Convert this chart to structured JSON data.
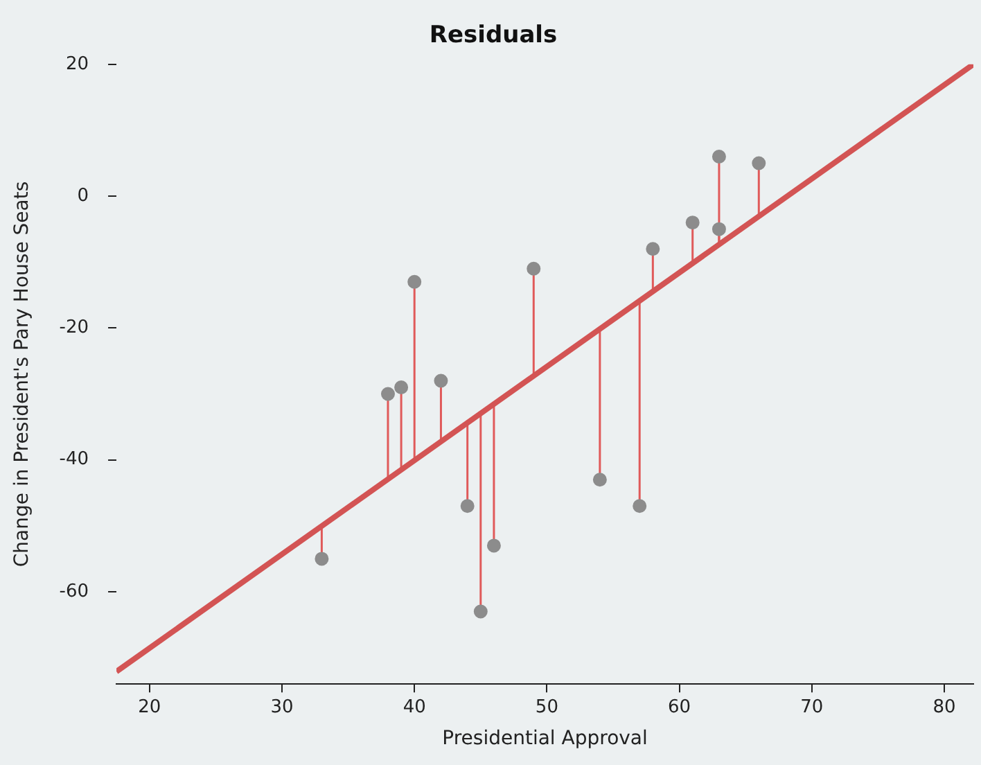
{
  "chart_data": {
    "type": "scatter",
    "title": "Residuals",
    "xlabel": "Presidential Approval",
    "ylabel": "Change in President's Pary House Seats",
    "xlim": [
      17.5,
      82.2
    ],
    "ylim": [
      -74,
      20
    ],
    "xticks": [
      20,
      30,
      40,
      50,
      60,
      70,
      80
    ],
    "yticks": [
      20,
      0,
      -20,
      -40,
      -60
    ],
    "grid": false,
    "legend": false,
    "series": [
      {
        "color": "#8c8c8c",
        "marker": "circle",
        "x": [
          33,
          38,
          39,
          40,
          42,
          44,
          45,
          46,
          49,
          54,
          57,
          58,
          61,
          63,
          63,
          66
        ],
        "values": [
          -55,
          -30,
          -29,
          -13,
          -28,
          -47,
          -63,
          -53,
          -11,
          -43,
          -47,
          -8,
          -4,
          6,
          -5,
          5
        ],
        "errors": [
          [
            -55,
            -50
          ],
          [
            -43,
            -30
          ],
          [
            -41.5,
            -29
          ],
          [
            -40,
            -13
          ],
          [
            -37,
            -28
          ],
          [
            -47,
            -34
          ],
          [
            -63,
            -33
          ],
          [
            -53,
            -31.5
          ],
          [
            -27,
            -11
          ],
          [
            -43,
            -20
          ],
          [
            -47,
            -16
          ],
          [
            -14.4,
            -8
          ],
          [
            -10,
            -4
          ],
          [
            -7.3,
            6
          ],
          [
            -7.3,
            -5
          ],
          [
            -3,
            5
          ]
        ]
      },
      {
        "type": "line",
        "color": "#d35454",
        "marker": "none",
        "x": [
          17.5,
          82.2
        ],
        "values": [
          -72.1,
          20
        ]
      }
    ]
  }
}
